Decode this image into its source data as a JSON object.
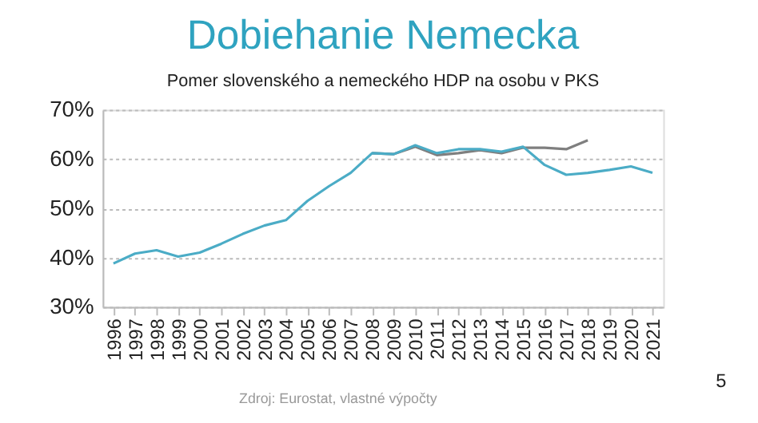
{
  "chart_data": {
    "type": "line",
    "title": "Dobiehanie Nemecka",
    "subtitle": "Pomer slovenského a nemeckého HDP na osobu v PKS",
    "categories": [
      "1996",
      "1997",
      "1998",
      "1999",
      "2000",
      "2001",
      "2002",
      "2003",
      "2004",
      "2005",
      "2006",
      "2007",
      "2008",
      "2009",
      "2010",
      "2011",
      "2012",
      "2013",
      "2014",
      "2015",
      "2016",
      "2017",
      "2018",
      "2019",
      "2020",
      "2021"
    ],
    "series": [
      {
        "color": "#7f7f7f",
        "values": [
          null,
          null,
          null,
          null,
          null,
          null,
          null,
          null,
          null,
          null,
          null,
          null,
          61.2,
          61.0,
          62.5,
          60.8,
          61.2,
          61.8,
          61.2,
          62.3,
          62.3,
          62.0,
          63.8,
          null,
          null,
          null
        ]
      },
      {
        "color": "#4bacc6",
        "values": [
          38.8,
          40.8,
          41.5,
          40.2,
          41.0,
          42.8,
          44.8,
          46.5,
          47.6,
          51.5,
          54.5,
          57.2,
          61.2,
          61.0,
          62.8,
          61.2,
          62.0,
          62.0,
          61.5,
          62.5,
          58.8,
          56.8,
          57.2,
          57.8,
          58.5,
          57.2
        ]
      }
    ],
    "ylim": [
      30,
      70
    ],
    "yticks": [
      {
        "value": 30,
        "label": "30%"
      },
      {
        "value": 40,
        "label": "40%"
      },
      {
        "value": 50,
        "label": "50%"
      },
      {
        "value": 60,
        "label": "60%"
      },
      {
        "value": 70,
        "label": "70%"
      }
    ],
    "grid": "y",
    "marker": "none",
    "line_style": "solid",
    "annotations": [
      "Zdroj: Eurostat, vlastné výpočty",
      "5"
    ]
  }
}
